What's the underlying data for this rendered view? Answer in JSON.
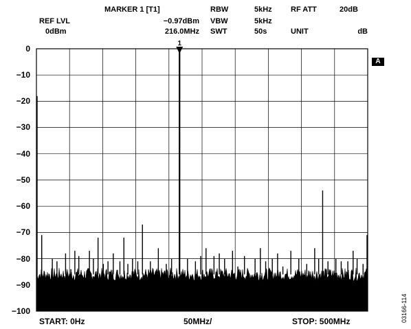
{
  "header": {
    "ref_lvl_label": "REF LVL",
    "ref_lvl_value": "0dBm",
    "marker_label": "MARKER 1 [T1]",
    "marker_level": "−0.97dBm",
    "marker_freq": "216.0MHz",
    "rbw_label": "RBW",
    "rbw_value": "5kHz",
    "vbw_label": "VBW",
    "vbw_value": "5kHz",
    "swt_label": "SWT",
    "swt_value": "50s",
    "rfatt_label": "RF ATT",
    "rfatt_value": "20dB",
    "unit_label": "UNIT",
    "unit_value": "dB"
  },
  "marker_number": "1",
  "trace_badge": "A",
  "footer": {
    "start": "START: 0Hz",
    "div": "50MHz/",
    "stop": "STOP: 500MHz"
  },
  "figure_id": "03166-114",
  "chart_data": {
    "type": "line",
    "xlabel": "",
    "ylabel": "",
    "xlim": [
      0,
      500
    ],
    "ylim": [
      -100,
      0
    ],
    "x_unit": "MHz",
    "y_unit": "dB",
    "grid": true,
    "yticks": [
      "0",
      "−10",
      "−20",
      "−30",
      "−40",
      "−50",
      "−60",
      "−70",
      "−80",
      "−90",
      "−100"
    ],
    "noise_floor": -86,
    "marker": {
      "x": 216.0,
      "y": -0.97
    },
    "spurs": [
      {
        "x": 1,
        "y": -18
      },
      {
        "x": 8,
        "y": -71
      },
      {
        "x": 24,
        "y": -80
      },
      {
        "x": 31,
        "y": -81
      },
      {
        "x": 44,
        "y": -78
      },
      {
        "x": 52,
        "y": -84
      },
      {
        "x": 58,
        "y": -77
      },
      {
        "x": 64,
        "y": -79
      },
      {
        "x": 80,
        "y": -77
      },
      {
        "x": 86,
        "y": -80
      },
      {
        "x": 93,
        "y": -72
      },
      {
        "x": 101,
        "y": -82
      },
      {
        "x": 108,
        "y": -81
      },
      {
        "x": 116,
        "y": -78
      },
      {
        "x": 126,
        "y": -81
      },
      {
        "x": 132,
        "y": -72
      },
      {
        "x": 138,
        "y": -82
      },
      {
        "x": 145,
        "y": -80
      },
      {
        "x": 153,
        "y": -81
      },
      {
        "x": 160,
        "y": -67
      },
      {
        "x": 172,
        "y": -81
      },
      {
        "x": 184,
        "y": -76
      },
      {
        "x": 196,
        "y": -82
      },
      {
        "x": 204,
        "y": -80
      },
      {
        "x": 216,
        "y": -0.97
      },
      {
        "x": 228,
        "y": -80
      },
      {
        "x": 240,
        "y": -81
      },
      {
        "x": 248,
        "y": -79
      },
      {
        "x": 256,
        "y": -76
      },
      {
        "x": 268,
        "y": -79
      },
      {
        "x": 276,
        "y": -78
      },
      {
        "x": 284,
        "y": -80
      },
      {
        "x": 296,
        "y": -77
      },
      {
        "x": 304,
        "y": -83
      },
      {
        "x": 314,
        "y": -79
      },
      {
        "x": 330,
        "y": -80
      },
      {
        "x": 338,
        "y": -76
      },
      {
        "x": 346,
        "y": -81
      },
      {
        "x": 356,
        "y": -80
      },
      {
        "x": 364,
        "y": -78
      },
      {
        "x": 372,
        "y": -83
      },
      {
        "x": 384,
        "y": -77
      },
      {
        "x": 396,
        "y": -80
      },
      {
        "x": 408,
        "y": -82
      },
      {
        "x": 420,
        "y": -76
      },
      {
        "x": 426,
        "y": -80
      },
      {
        "x": 432,
        "y": -54
      },
      {
        "x": 440,
        "y": -81
      },
      {
        "x": 452,
        "y": -80
      },
      {
        "x": 460,
        "y": -81
      },
      {
        "x": 470,
        "y": -81
      },
      {
        "x": 478,
        "y": -77
      },
      {
        "x": 484,
        "y": -80
      },
      {
        "x": 493,
        "y": -82
      },
      {
        "x": 499,
        "y": -71
      }
    ]
  }
}
